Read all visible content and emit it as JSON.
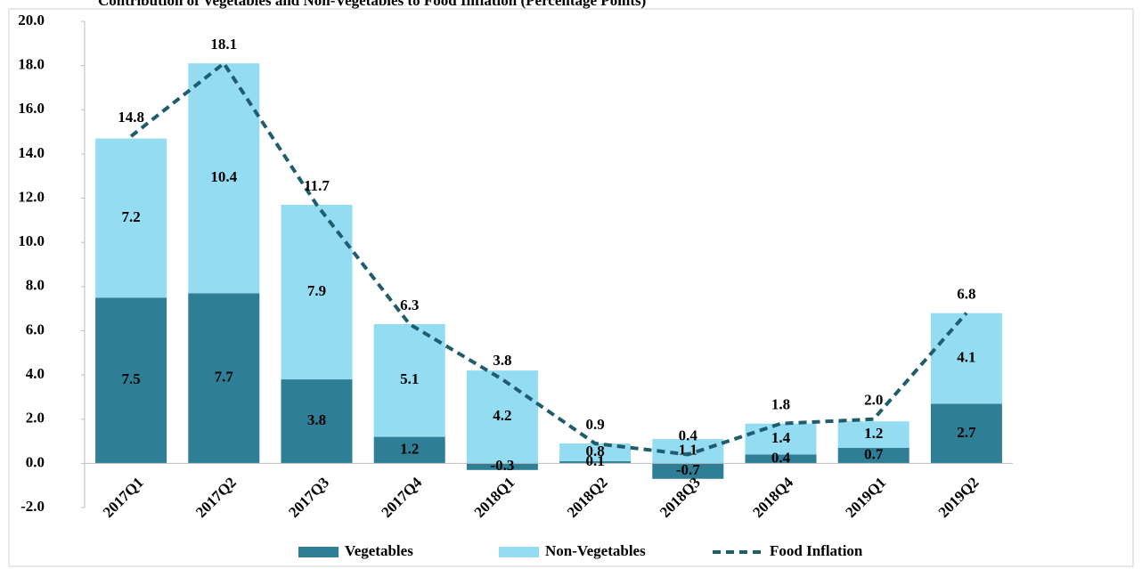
{
  "chart_data": {
    "type": "bar",
    "title": "Contribution of Vegetables and Non-Vegetables to Food Inflation (Percentage Points)",
    "categories": [
      "2017Q1",
      "2017Q2",
      "2017Q3",
      "2017Q4",
      "2018Q1",
      "2018Q2",
      "2018Q3",
      "2018Q4",
      "2019Q1",
      "2019Q2"
    ],
    "series": [
      {
        "name": "Vegetables",
        "type": "bar",
        "color": "#2e7f96",
        "values": [
          7.5,
          7.7,
          3.8,
          1.2,
          -0.3,
          0.1,
          -0.7,
          0.4,
          0.7,
          2.7
        ],
        "value_labels": [
          "7.5",
          "7.7",
          "3.8",
          "1.2",
          "-0.3",
          "0.1",
          "-0.7",
          "0.4",
          "0.7",
          "2.7"
        ]
      },
      {
        "name": "Non-Vegetables",
        "type": "bar",
        "color": "#93dcf2",
        "values": [
          7.2,
          10.4,
          7.9,
          5.1,
          4.2,
          0.8,
          1.1,
          1.4,
          1.2,
          4.1
        ],
        "value_labels": [
          "7.2",
          "10.4",
          "7.9",
          "5.1",
          "4.2",
          "0.8",
          "1.1",
          "1.4",
          "1.2",
          "4.1"
        ]
      },
      {
        "name": "Food Inflation",
        "type": "line",
        "color": "#1f5c6e",
        "values": [
          14.8,
          18.1,
          11.7,
          6.3,
          3.8,
          0.9,
          0.4,
          1.8,
          2.0,
          6.8
        ],
        "value_labels": [
          "14.8",
          "18.1",
          "11.7",
          "6.3",
          "3.8",
          "0.9",
          "0.4",
          "1.8",
          "2.0",
          "6.8"
        ]
      }
    ],
    "ylim": [
      -2,
      20
    ],
    "yticks": [
      {
        "value": -2,
        "label": "-2.0"
      },
      {
        "value": 0,
        "label": "0.0"
      },
      {
        "value": 2,
        "label": "2.0"
      },
      {
        "value": 4,
        "label": "4.0"
      },
      {
        "value": 6,
        "label": "6.0"
      },
      {
        "value": 8,
        "label": "8.0"
      },
      {
        "value": 10,
        "label": "10.0"
      },
      {
        "value": 12,
        "label": "12.0"
      },
      {
        "value": 14,
        "label": "14.0"
      },
      {
        "value": 16,
        "label": "16.0"
      },
      {
        "value": 18,
        "label": "18.0"
      },
      {
        "value": 20,
        "label": "20.0"
      }
    ],
    "grid": false
  }
}
